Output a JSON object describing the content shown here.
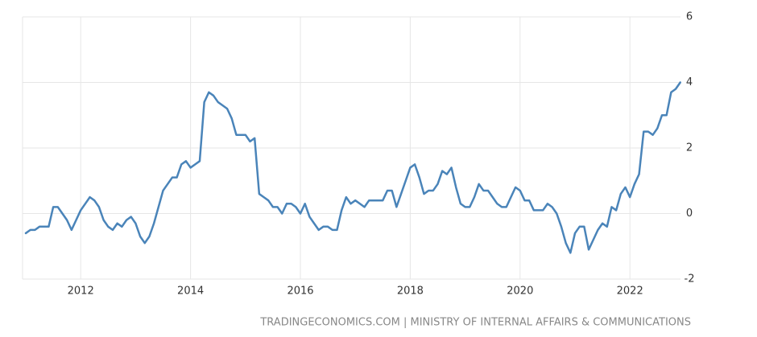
{
  "chart_data": {
    "type": "line",
    "categories": [
      null,
      null,
      null,
      null,
      null,
      null,
      null,
      null,
      null,
      null,
      null,
      null,
      "2012",
      null,
      null,
      null,
      null,
      null,
      null,
      null,
      null,
      null,
      null,
      null,
      null,
      null,
      null,
      null,
      null,
      null,
      null,
      null,
      null,
      null,
      null,
      null,
      "2014",
      null,
      null,
      null,
      null,
      null,
      null,
      null,
      null,
      null,
      null,
      null,
      null,
      null,
      null,
      null,
      null,
      null,
      null,
      null,
      null,
      null,
      null,
      null,
      "2016",
      null,
      null,
      null,
      null,
      null,
      null,
      null,
      null,
      null,
      null,
      null,
      null,
      null,
      null,
      null,
      null,
      null,
      null,
      null,
      null,
      null,
      null,
      null,
      "2018",
      null,
      null,
      null,
      null,
      null,
      null,
      null,
      null,
      null,
      null,
      null,
      null,
      null,
      null,
      null,
      null,
      null,
      null,
      null,
      null,
      null,
      null,
      null,
      "2020",
      null,
      null,
      null,
      null,
      null,
      null,
      null,
      null,
      null,
      null,
      null,
      null,
      null,
      null,
      null,
      null,
      null,
      null,
      null,
      null,
      null,
      null,
      null,
      "2022",
      null,
      null,
      null,
      null,
      null,
      null,
      null,
      null,
      null,
      null,
      null
    ],
    "values": [
      -0.6,
      -0.5,
      -0.5,
      -0.4,
      -0.4,
      -0.4,
      0.2,
      0.2,
      0.0,
      -0.2,
      -0.5,
      -0.2,
      0.1,
      0.3,
      0.5,
      0.4,
      0.2,
      -0.2,
      -0.4,
      -0.5,
      -0.3,
      -0.4,
      -0.2,
      -0.1,
      -0.3,
      -0.7,
      -0.9,
      -0.7,
      -0.3,
      0.2,
      0.7,
      0.9,
      1.1,
      1.1,
      1.5,
      1.6,
      1.4,
      1.5,
      1.6,
      3.4,
      3.7,
      3.6,
      3.4,
      3.3,
      3.2,
      2.9,
      2.4,
      2.4,
      2.4,
      2.2,
      2.3,
      0.6,
      0.5,
      0.4,
      0.2,
      0.2,
      0.0,
      0.3,
      0.3,
      0.2,
      0.0,
      0.3,
      -0.1,
      -0.3,
      -0.5,
      -0.4,
      -0.4,
      -0.5,
      -0.5,
      0.1,
      0.5,
      0.3,
      0.4,
      0.3,
      0.2,
      0.4,
      0.4,
      0.4,
      0.4,
      0.7,
      0.7,
      0.2,
      0.6,
      1.0,
      1.4,
      1.5,
      1.1,
      0.6,
      0.7,
      0.7,
      0.9,
      1.3,
      1.2,
      1.4,
      0.8,
      0.3,
      0.2,
      0.2,
      0.5,
      0.9,
      0.7,
      0.7,
      0.5,
      0.3,
      0.2,
      0.2,
      0.5,
      0.8,
      0.7,
      0.4,
      0.4,
      0.1,
      0.1,
      0.1,
      0.3,
      0.2,
      0.0,
      -0.4,
      -0.9,
      -1.2,
      -0.6,
      -0.4,
      -0.4,
      -1.1,
      -0.8,
      -0.5,
      -0.3,
      -0.4,
      0.2,
      0.1,
      0.6,
      0.8,
      0.5,
      0.9,
      1.2,
      2.5,
      2.5,
      2.4,
      2.6,
      3.0,
      3.0,
      3.7,
      3.8,
      4.0
    ],
    "color": "#4a84b9",
    "ylim": [
      -2,
      6
    ],
    "yticks": [
      -2,
      0,
      2,
      4,
      6
    ],
    "grid": true,
    "source": "TRADINGECONOMICS.COM | MINISTRY OF INTERNAL AFFAIRS & COMMUNICATIONS"
  }
}
